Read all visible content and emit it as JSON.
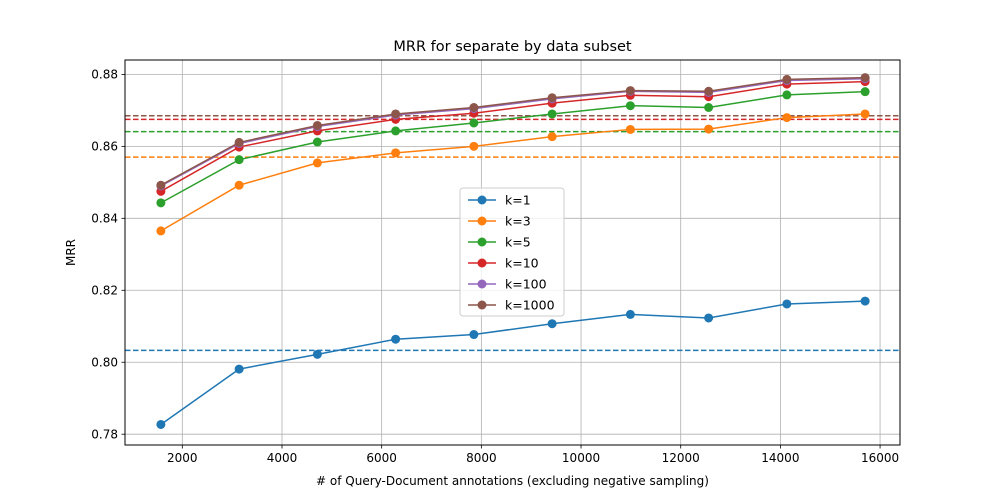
{
  "chart_data": {
    "type": "line",
    "title": "MRR for separate by data subset",
    "xlabel": "# of Query-Document annotations (excluding negative sampling)",
    "ylabel": "MRR",
    "xlim": [
      850,
      16400
    ],
    "ylim": [
      0.777,
      0.884
    ],
    "xticks": [
      2000,
      4000,
      6000,
      8000,
      10000,
      12000,
      14000,
      16000
    ],
    "yticks": [
      0.78,
      0.8,
      0.82,
      0.84,
      0.86,
      0.88
    ],
    "xtick_labels": [
      "2000",
      "4000",
      "6000",
      "8000",
      "10000",
      "12000",
      "14000",
      "16000"
    ],
    "ytick_labels": [
      "0.78",
      "0.80",
      "0.82",
      "0.84",
      "0.86",
      "0.88"
    ],
    "grid": true,
    "legend_position": "center",
    "x": [
      1570,
      3140,
      4710,
      6280,
      7850,
      9420,
      10990,
      12560,
      14130,
      15700
    ],
    "series": [
      {
        "name": "k=1",
        "color": "#1f77b4",
        "baseline": 0.8033,
        "values": [
          0.7827,
          0.7981,
          0.8022,
          0.8064,
          0.8077,
          0.8107,
          0.8133,
          0.8123,
          0.8162,
          0.817
        ]
      },
      {
        "name": "k=3",
        "color": "#ff7f0e",
        "baseline": 0.857,
        "values": [
          0.8365,
          0.8492,
          0.8554,
          0.8582,
          0.86,
          0.8627,
          0.8647,
          0.8648,
          0.868,
          0.869
        ]
      },
      {
        "name": "k=5",
        "color": "#2ca02c",
        "baseline": 0.8641,
        "values": [
          0.8443,
          0.8563,
          0.8612,
          0.8643,
          0.8665,
          0.869,
          0.8713,
          0.8708,
          0.8743,
          0.8752
        ]
      },
      {
        "name": "k=10",
        "color": "#d62728",
        "baseline": 0.8675,
        "values": [
          0.8475,
          0.8598,
          0.8643,
          0.8675,
          0.8692,
          0.872,
          0.8742,
          0.8738,
          0.8773,
          0.878
        ]
      },
      {
        "name": "k=100",
        "color": "#9467bd",
        "baseline": 0.8685,
        "values": [
          0.849,
          0.8608,
          0.8655,
          0.8687,
          0.8705,
          0.8732,
          0.8753,
          0.875,
          0.8783,
          0.8788
        ]
      },
      {
        "name": "k=1000",
        "color": "#8c564b",
        "baseline": 0.8685,
        "values": [
          0.8492,
          0.8611,
          0.8658,
          0.869,
          0.8708,
          0.8735,
          0.8755,
          0.8753,
          0.8786,
          0.8791
        ]
      }
    ]
  }
}
